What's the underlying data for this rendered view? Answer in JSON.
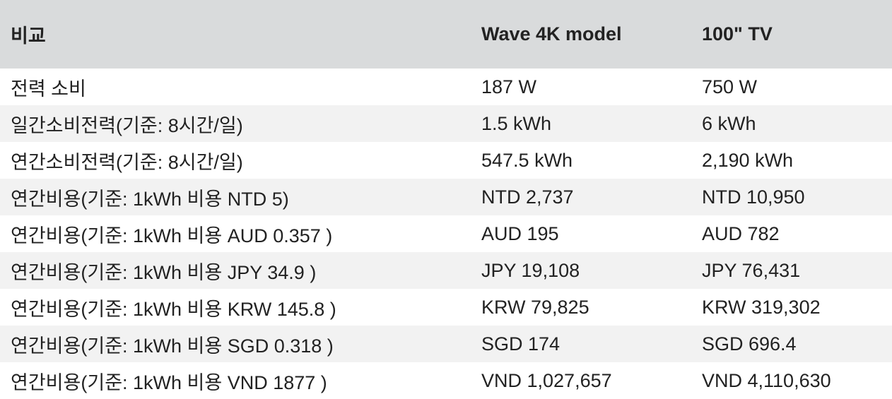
{
  "table": {
    "header": [
      "비교",
      "Wave 4K model",
      "100\" TV"
    ],
    "rows": [
      [
        "전력 소비",
        "187 W",
        "750 W"
      ],
      [
        "일간소비전력(기준: 8시간/일)",
        "1.5 kWh",
        "6 kWh"
      ],
      [
        "연간소비전력(기준: 8시간/일)",
        "547.5 kWh",
        "2,190 kWh"
      ],
      [
        "연간비용(기준: 1kWh 비용 NTD 5)",
        "NTD 2,737",
        "NTD 10,950"
      ],
      [
        "연간비용(기준: 1kWh 비용 AUD 0.357 )",
        "AUD 195",
        "AUD 782"
      ],
      [
        "연간비용(기준: 1kWh 비용 JPY 34.9 )",
        "JPY 19,108",
        "JPY 76,431"
      ],
      [
        "연간비용(기준: 1kWh 비용 KRW 145.8 )",
        "KRW 79,825",
        "KRW 319,302"
      ],
      [
        "연간비용(기준: 1kWh 비용 SGD 0.318 )",
        "SGD 174",
        "SGD 696.4"
      ],
      [
        "연간비용(기준: 1kWh 비용 VND 1877 )",
        "VND 1,027,657",
        "VND 4,110,630"
      ]
    ]
  }
}
